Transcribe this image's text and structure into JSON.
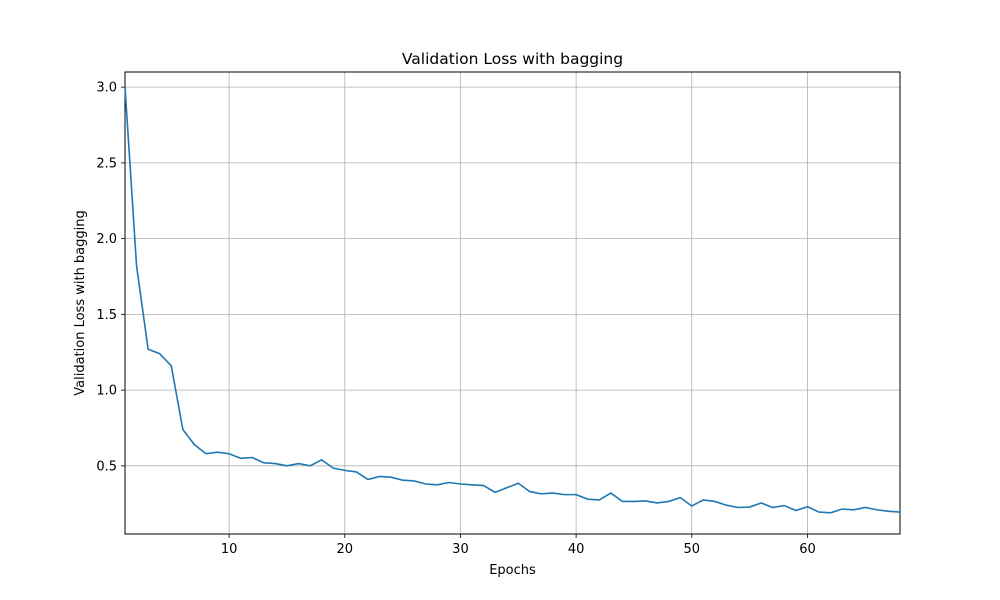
{
  "chart_data": {
    "type": "line",
    "title": "Validation Loss with bagging",
    "xlabel": "Epochs",
    "ylabel": "Validation Loss with bagging",
    "xlim": [
      1,
      68
    ],
    "ylim": [
      0.05,
      3.1
    ],
    "xticks": [
      10,
      20,
      30,
      40,
      50,
      60
    ],
    "yticks": [
      0.5,
      1.0,
      1.5,
      2.0,
      2.5,
      3.0
    ],
    "xtick_labels": [
      "10",
      "20",
      "30",
      "40",
      "50",
      "60"
    ],
    "ytick_labels": [
      "0.5",
      "1.0",
      "1.5",
      "2.0",
      "2.5",
      "3.0"
    ],
    "grid": true,
    "line_color": "#1f77b4",
    "series": [
      {
        "x": [
          1,
          2,
          3,
          4,
          5,
          6,
          7,
          8,
          9,
          10,
          11,
          12,
          13,
          14,
          15,
          16,
          17,
          18,
          19,
          20,
          21,
          22,
          23,
          24,
          25,
          26,
          27,
          28,
          29,
          30,
          31,
          32,
          33,
          34,
          35,
          36,
          37,
          38,
          39,
          40,
          41,
          42,
          43,
          44,
          45,
          46,
          47,
          48,
          49,
          50,
          51,
          52,
          53,
          54,
          55,
          56,
          57,
          58,
          59,
          60,
          61,
          62,
          63,
          64,
          65,
          66,
          67,
          68
        ],
        "values": [
          3.0,
          1.82,
          1.27,
          1.24,
          1.16,
          0.74,
          0.64,
          0.58,
          0.59,
          0.58,
          0.55,
          0.555,
          0.52,
          0.515,
          0.5,
          0.515,
          0.5,
          0.54,
          0.485,
          0.47,
          0.46,
          0.41,
          0.43,
          0.425,
          0.405,
          0.4,
          0.38,
          0.375,
          0.39,
          0.38,
          0.375,
          0.37,
          0.325,
          0.355,
          0.385,
          0.33,
          0.315,
          0.32,
          0.31,
          0.31,
          0.28,
          0.275,
          0.32,
          0.265,
          0.265,
          0.268,
          0.255,
          0.265,
          0.29,
          0.235,
          0.275,
          0.265,
          0.24,
          0.225,
          0.228,
          0.255,
          0.225,
          0.238,
          0.205,
          0.23,
          0.195,
          0.19,
          0.215,
          0.21,
          0.225,
          0.21,
          0.2,
          0.195
        ]
      }
    ]
  }
}
